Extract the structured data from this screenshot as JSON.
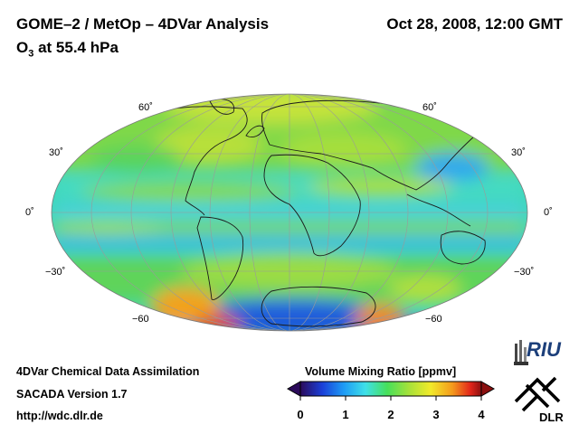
{
  "header": {
    "title": "GOME–2 / MetOp – 4DVar Analysis",
    "subtitle_prefix": "O",
    "subtitle_sub": "3",
    "subtitle_suffix": " at 55.4 hPa",
    "datetime": "Oct 28, 2008, 12:00 GMT"
  },
  "map": {
    "projection": "Mollweide",
    "lat_labels_left": [
      "60˚",
      "30˚",
      "0˚",
      "−30˚",
      "−60"
    ],
    "lat_labels_right": [
      "60˚",
      "30˚",
      "0˚",
      "−30˚",
      "−60"
    ],
    "field": "ozone volume mixing ratio"
  },
  "colorbar": {
    "title": "Volume Mixing Ratio [ppmv]",
    "ticks": [
      "0",
      "1",
      "2",
      "3",
      "4"
    ],
    "min": 0,
    "max": 4,
    "colors": [
      "#2b0a5a",
      "#1b3fd8",
      "#1e9bf5",
      "#3fe0e8",
      "#46e05a",
      "#a6e13a",
      "#f2ea2a",
      "#f49a1c",
      "#e2261b",
      "#8b1010"
    ]
  },
  "footer": {
    "line1": "4DVar Chemical Data Assimilation",
    "line2": "SACADA Version 1.7",
    "line3": "http://wdc.dlr.de"
  },
  "logos": {
    "riu_text": "RIU",
    "dlr_text": "DLR"
  }
}
